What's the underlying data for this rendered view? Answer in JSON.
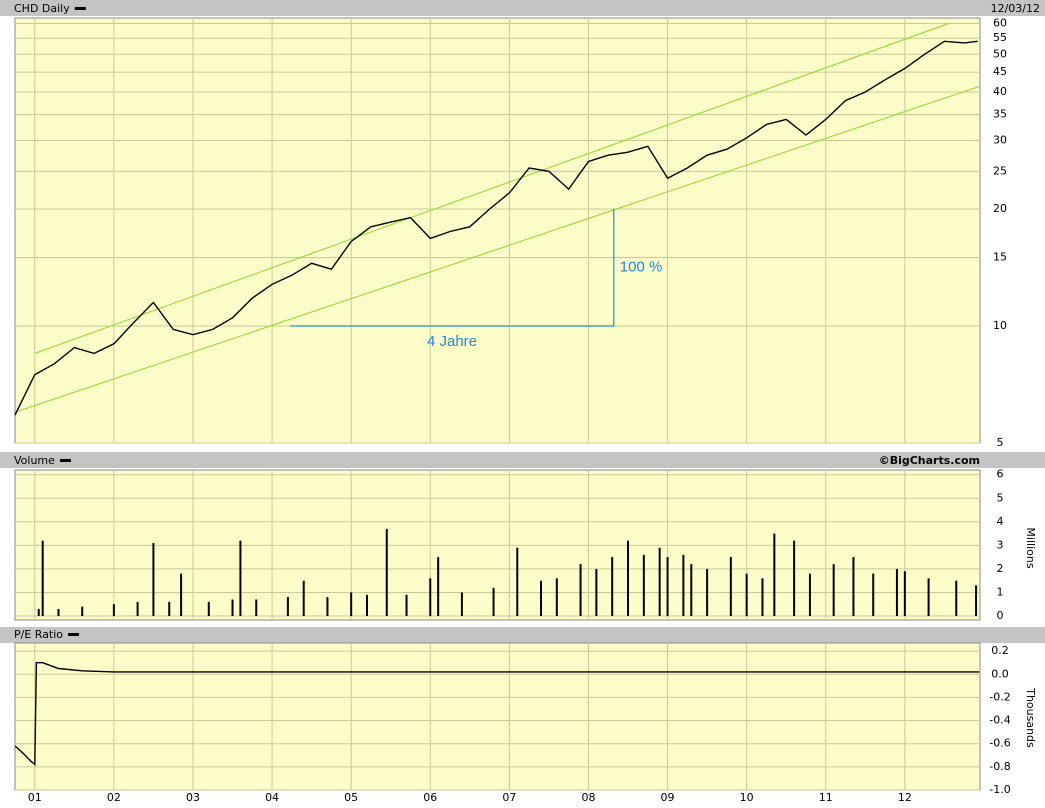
{
  "chart_data": [
    {
      "type": "line",
      "title": "CHD Daily",
      "date": "12/03/12",
      "log": true,
      "color": "#000000",
      "x": [
        2000.75,
        2001.0,
        2001.25,
        2001.5,
        2001.75,
        2002.0,
        2002.25,
        2002.5,
        2002.75,
        2003.0,
        2003.25,
        2003.5,
        2003.75,
        2004.0,
        2004.25,
        2004.5,
        2004.75,
        2005.0,
        2005.25,
        2005.5,
        2005.75,
        2006.0,
        2006.25,
        2006.5,
        2006.75,
        2007.0,
        2007.25,
        2007.5,
        2007.75,
        2008.0,
        2008.25,
        2008.5,
        2008.75,
        2009.0,
        2009.25,
        2009.5,
        2009.75,
        2010.0,
        2010.25,
        2010.5,
        2010.75,
        2011.0,
        2011.25,
        2011.5,
        2011.75,
        2012.0,
        2012.25,
        2012.5,
        2012.75,
        2012.92
      ],
      "values": [
        5.9,
        7.5,
        8.0,
        8.8,
        8.5,
        9.0,
        10.2,
        11.5,
        9.8,
        9.5,
        9.8,
        10.5,
        11.8,
        12.8,
        13.5,
        14.5,
        14.0,
        16.5,
        18.0,
        18.5,
        19.0,
        16.8,
        17.5,
        18.0,
        20.0,
        22.0,
        25.5,
        25.0,
        22.5,
        26.5,
        27.5,
        28.0,
        29.0,
        24.0,
        25.5,
        27.5,
        28.5,
        30.5,
        33.0,
        34.0,
        31.0,
        34.0,
        38.0,
        40.0,
        43.0,
        46.0,
        50.0,
        54.0,
        53.5,
        54.0
      ],
      "ylim": [
        5,
        62
      ],
      "yticks": [
        5,
        10,
        15,
        20,
        25,
        30,
        35,
        40,
        45,
        50,
        55,
        60
      ],
      "grid": true,
      "trendline_color": "#88dd22",
      "trendlines": [
        {
          "x": [
            2001.0,
            2012.55
          ],
          "values": [
            8.5,
            60
          ]
        },
        {
          "x": [
            2000.75,
            2012.95
          ],
          "values": [
            6.0,
            41.4
          ]
        }
      ],
      "annotation_color": "#2288dd",
      "annotations": [
        {
          "text": "4 Jahre",
          "x": [
            2004.23,
            2008.32
          ],
          "values": [
            10,
            10
          ]
        },
        {
          "text": "100 %",
          "x": [
            2008.32,
            2008.32
          ],
          "values": [
            10,
            20
          ]
        }
      ]
    },
    {
      "type": "bar",
      "title": "Volume",
      "source": "©BigCharts.com",
      "ylabel": "Millions",
      "color": "#000000",
      "x": [
        2001.05,
        2001.1,
        2001.3,
        2001.6,
        2002.0,
        2002.3,
        2002.5,
        2002.7,
        2002.85,
        2003.2,
        2003.5,
        2003.6,
        2003.8,
        2004.2,
        2004.4,
        2004.7,
        2005.0,
        2005.2,
        2005.45,
        2005.7,
        2006.0,
        2006.1,
        2006.4,
        2006.8,
        2007.1,
        2007.4,
        2007.6,
        2007.9,
        2008.1,
        2008.3,
        2008.5,
        2008.7,
        2008.9,
        2009.0,
        2009.2,
        2009.3,
        2009.5,
        2009.8,
        2010.0,
        2010.2,
        2010.35,
        2010.6,
        2010.8,
        2011.1,
        2011.35,
        2011.6,
        2011.9,
        2012.0,
        2012.3,
        2012.65,
        2012.9
      ],
      "values": [
        0.3,
        3.2,
        0.3,
        0.4,
        0.5,
        0.6,
        3.1,
        0.6,
        1.8,
        0.6,
        0.7,
        3.2,
        0.7,
        0.8,
        1.5,
        0.8,
        1.0,
        0.9,
        3.7,
        0.9,
        1.6,
        2.5,
        1.0,
        1.2,
        2.9,
        1.5,
        1.6,
        2.2,
        2.0,
        2.5,
        3.2,
        2.6,
        2.9,
        2.5,
        2.6,
        2.2,
        2.0,
        2.5,
        1.8,
        1.6,
        3.5,
        3.2,
        1.8,
        2.2,
        2.5,
        1.8,
        2.0,
        1.9,
        1.6,
        1.5,
        1.3
      ],
      "ylim": [
        0,
        6.2
      ],
      "yticks": [
        0,
        1,
        2,
        3,
        4,
        5,
        6
      ],
      "grid": true
    },
    {
      "type": "line",
      "title": "P/E Ratio",
      "ylabel": "Thousands",
      "color": "#000000",
      "x": [
        2000.75,
        2000.85,
        2000.95,
        2001.0,
        2001.02,
        2001.1,
        2001.3,
        2001.6,
        2002.0,
        2004.0,
        2006.0,
        2008.0,
        2010.0,
        2012.0,
        2012.94
      ],
      "values": [
        -0.62,
        -0.68,
        -0.75,
        -0.78,
        0.1,
        0.1,
        0.05,
        0.03,
        0.02,
        0.02,
        0.02,
        0.02,
        0.02,
        0.02,
        0.02
      ],
      "ylim": [
        -1.0,
        0.27
      ],
      "yticks": [
        {
          "value": 0.2,
          "label": "0.2"
        },
        {
          "value": 0.0,
          "label": "0.0"
        },
        {
          "value": -0.2,
          "label": "-0.2"
        },
        {
          "value": -0.4,
          "label": "-0.4"
        },
        {
          "value": -0.6,
          "label": "-0.6"
        },
        {
          "value": -0.8,
          "label": "-0.8"
        },
        {
          "value": -1.0,
          "label": "-1.0"
        }
      ],
      "grid": true,
      "xlim": [
        2000.75,
        2012.95
      ],
      "xticks": [
        {
          "value": 2001,
          "label": "01"
        },
        {
          "value": 2002,
          "label": "02"
        },
        {
          "value": 2003,
          "label": "03"
        },
        {
          "value": 2004,
          "label": "04"
        },
        {
          "value": 2005,
          "label": "05"
        },
        {
          "value": 2006,
          "label": "06"
        },
        {
          "value": 2007,
          "label": "07"
        },
        {
          "value": 2008,
          "label": "08"
        },
        {
          "value": 2009,
          "label": "09"
        },
        {
          "value": 2010,
          "label": "10"
        },
        {
          "value": 2011,
          "label": "11"
        },
        {
          "value": 2012,
          "label": "12"
        }
      ]
    }
  ]
}
